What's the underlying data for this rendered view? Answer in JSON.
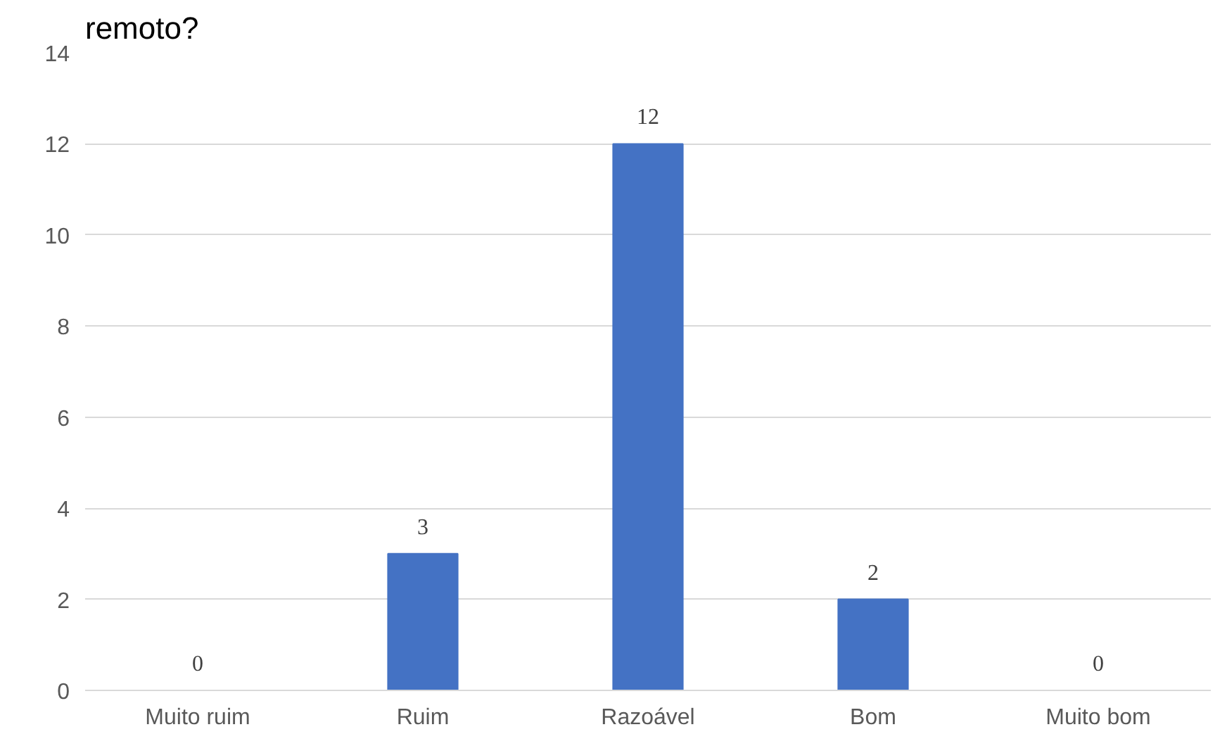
{
  "chart_data": {
    "type": "bar",
    "title": "remoto?",
    "categories": [
      "Muito ruim",
      "Ruim",
      "Razoável",
      "Bom",
      "Muito bom"
    ],
    "values": [
      0,
      3,
      12,
      2,
      0
    ],
    "color": "#4472c4",
    "ylim": [
      0,
      14
    ],
    "yticks": [
      0,
      2,
      4,
      6,
      8,
      10,
      12,
      14
    ],
    "grid": "y",
    "data_labels": true
  }
}
